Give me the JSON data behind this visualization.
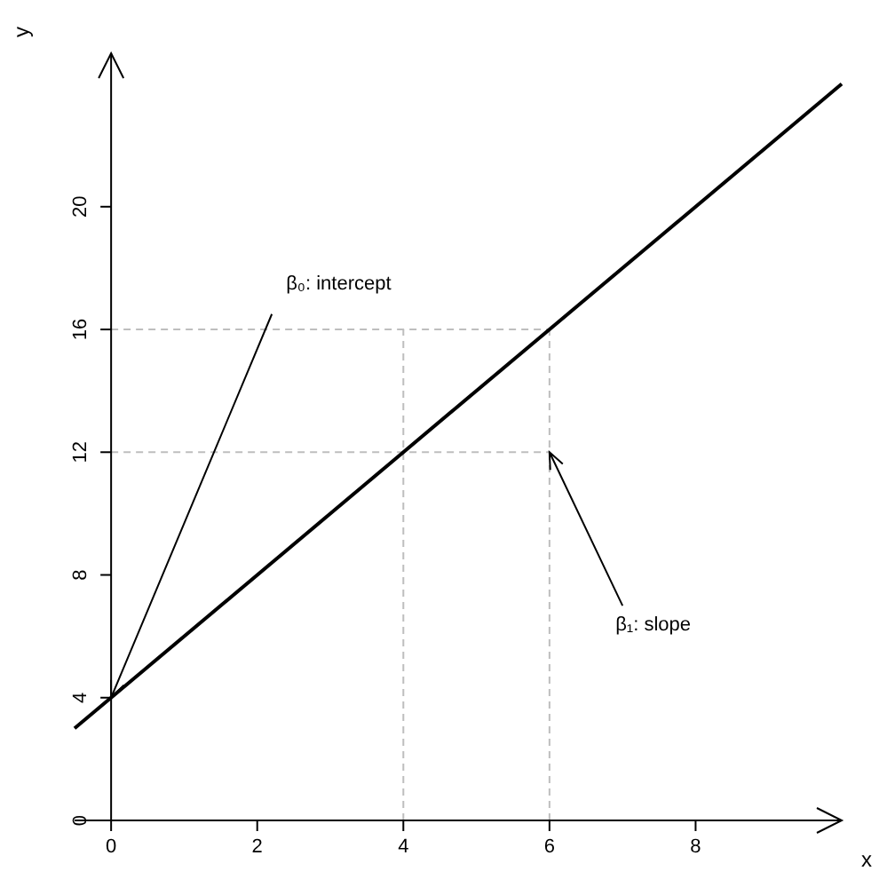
{
  "chart_data": {
    "type": "line",
    "xlabel": "x",
    "ylabel": "y",
    "series": [
      {
        "color": "#000000",
        "x": [
          -0.5,
          10
        ],
        "values": [
          3,
          24
        ]
      }
    ],
    "xlim": [
      -0.5,
      10
    ],
    "ylim": [
      0,
      25
    ],
    "xticks": [
      0,
      2,
      4,
      6,
      8
    ],
    "yticks": [
      0,
      4,
      8,
      12,
      16,
      20
    ],
    "marker": "none",
    "line_style": "solid",
    "ref_lines": [
      {
        "axis": "x",
        "value": 4,
        "color": "#bebebe",
        "line_style": "dashed"
      },
      {
        "axis": "x",
        "value": 6,
        "color": "#bebebe",
        "line_style": "dashed"
      },
      {
        "axis": "y",
        "value": 12,
        "color": "#bebebe",
        "line_style": "dashed"
      },
      {
        "axis": "y",
        "value": 16,
        "color": "#bebebe",
        "line_style": "dashed"
      }
    ],
    "annotations": [
      {
        "text": "β₀: intercept",
        "x": 0,
        "y": 4
      },
      {
        "text": "β₁: slope",
        "x": 6,
        "y": 12
      }
    ]
  }
}
